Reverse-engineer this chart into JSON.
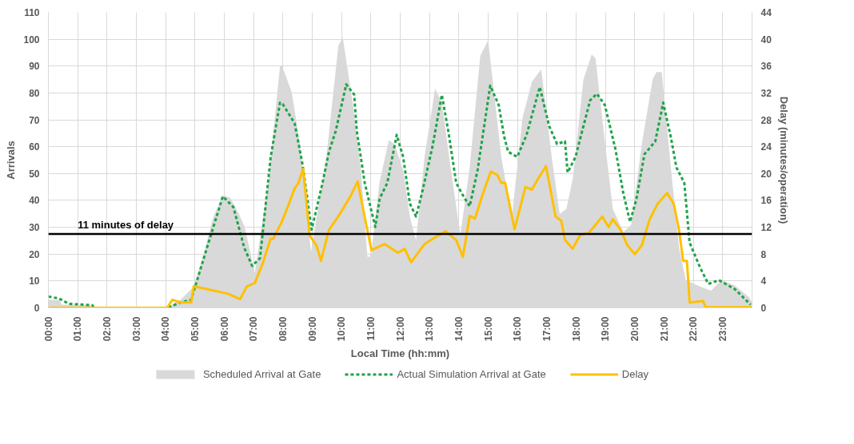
{
  "chart_data": {
    "type": "line",
    "xlabel": "Local Time (hh:mm)",
    "ylabel": "Arrivals",
    "y2label": "Delay (minutes/operation)",
    "xlim": [
      0,
      24
    ],
    "xticks": [
      {
        "value": 0,
        "label": "00:00"
      },
      {
        "value": 1,
        "label": "01:00"
      },
      {
        "value": 2,
        "label": "02:00"
      },
      {
        "value": 3,
        "label": "03:00"
      },
      {
        "value": 4,
        "label": "04:00"
      },
      {
        "value": 5,
        "label": "05:00"
      },
      {
        "value": 6,
        "label": "06:00"
      },
      {
        "value": 7,
        "label": "07:00"
      },
      {
        "value": 8,
        "label": "08:00"
      },
      {
        "value": 9,
        "label": "09:00"
      },
      {
        "value": 10,
        "label": "10:00"
      },
      {
        "value": 11,
        "label": "11:00"
      },
      {
        "value": 12,
        "label": "12:00"
      },
      {
        "value": 13,
        "label": "13:00"
      },
      {
        "value": 14,
        "label": "14:00"
      },
      {
        "value": 15,
        "label": "15:00"
      },
      {
        "value": 16,
        "label": "16:00"
      },
      {
        "value": 17,
        "label": "17:00"
      },
      {
        "value": 18,
        "label": "18:00"
      },
      {
        "value": 19,
        "label": "19:00"
      },
      {
        "value": 20,
        "label": "20:00"
      },
      {
        "value": 21,
        "label": "21:00"
      },
      {
        "value": 22,
        "label": "22:00"
      },
      {
        "value": 23,
        "label": "23:00"
      }
    ],
    "ylim": [
      0,
      110
    ],
    "yticks": [
      0,
      10,
      20,
      30,
      40,
      50,
      60,
      70,
      80,
      90,
      100,
      110
    ],
    "y2lim": [
      0,
      44
    ],
    "y2ticks": [
      0,
      4,
      8,
      12,
      16,
      20,
      24,
      28,
      32,
      36,
      40,
      44
    ],
    "grid": true,
    "legend": "bottom",
    "ref_lines": [
      {
        "axis": "y2",
        "value": 11,
        "label": "11 minutes of delay",
        "color": "#000000"
      }
    ],
    "series": [
      {
        "name": "Scheduled Arrival at Gate",
        "type": "area",
        "color": "#d9d9d9",
        "x": [
          0,
          0.39,
          0.45,
          1.5,
          1.55,
          4.05,
          4.5,
          4.96,
          5.3,
          5.6,
          5.95,
          6.2,
          6.5,
          6.7,
          7.04,
          7.5,
          7.9,
          7.96,
          8.3,
          8.58,
          8.96,
          9.48,
          9.89,
          10.04,
          10.39,
          10.66,
          10.88,
          11.0,
          11.29,
          11.61,
          11.8,
          12.1,
          12.33,
          12.54,
          12.83,
          13.19,
          13.42,
          13.73,
          14.05,
          14.37,
          14.73,
          15.0,
          15.45,
          15.81,
          16.17,
          16.49,
          16.81,
          17.17,
          17.44,
          17.67,
          17.89,
          18.25,
          18.53,
          18.66,
          18.93,
          19.25,
          19.61,
          19.88,
          20.24,
          20.61,
          20.74,
          20.92,
          21.24,
          21.51,
          21.74,
          22.24,
          22.6,
          22.96,
          23.41,
          23.9,
          24
        ],
        "values": [
          3,
          3,
          1.2,
          1,
          0,
          0,
          3,
          7.9,
          20,
          33,
          41.9,
          41,
          35,
          30,
          13,
          46.6,
          90,
          90.4,
          80.3,
          61,
          20.9,
          56,
          97.6,
          100.7,
          75.5,
          51.3,
          19,
          19,
          46.5,
          62.4,
          61,
          51.3,
          34,
          25.1,
          56.2,
          81.7,
          76.4,
          51.3,
          27.2,
          52.3,
          93.8,
          99.6,
          56,
          34,
          70.6,
          84.1,
          88.8,
          56,
          34.9,
          36.9,
          48.4,
          85.1,
          94.3,
          93,
          66.8,
          36.9,
          28.2,
          31,
          61,
          85.1,
          87.8,
          87.8,
          51.3,
          22.4,
          10.3,
          7.9,
          6.4,
          10.3,
          8.3,
          4,
          2
        ]
      },
      {
        "name": "Actual Simulation Arrival at Gate",
        "line_style": "dashed",
        "color": "#1fa34a",
        "x": [
          0,
          0.36,
          0.7,
          1.5,
          1.55,
          4.05,
          4.5,
          4.87,
          5.41,
          5.95,
          6.31,
          6.68,
          6.95,
          7.22,
          7.58,
          7.9,
          7.99,
          8.4,
          8.67,
          8.98,
          9.35,
          9.57,
          9.8,
          10.16,
          10.43,
          10.52,
          10.79,
          11.15,
          11.3,
          11.56,
          11.88,
          12.1,
          12.33,
          12.54,
          12.74,
          13.1,
          13.42,
          13.64,
          13.91,
          14.1,
          14.37,
          14.64,
          15.07,
          15.36,
          15.54,
          15.68,
          15.99,
          16.31,
          16.76,
          17.08,
          17.35,
          17.62,
          17.71,
          17.98,
          18.25,
          18.48,
          18.71,
          18.98,
          19.34,
          19.61,
          19.84,
          20.06,
          20.33,
          20.7,
          20.97,
          21.24,
          21.42,
          21.69,
          21.87,
          22.24,
          22.51,
          22.87,
          23.41,
          23.95
        ],
        "values": [
          4.2,
          3.5,
          1.5,
          1,
          0,
          0,
          2,
          3,
          22.4,
          41.5,
          37.5,
          22.4,
          15.6,
          18.5,
          56,
          76.4,
          75.9,
          68.7,
          53.3,
          29.1,
          46.5,
          58.1,
          65.8,
          83.2,
          79.4,
          65.8,
          46.5,
          30.1,
          40.7,
          46.5,
          64.4,
          56.2,
          38.8,
          34,
          42.6,
          60,
          79.3,
          65.8,
          46.5,
          42.6,
          37.8,
          51.3,
          82.7,
          75.5,
          64,
          58.1,
          56.2,
          64.4,
          82.2,
          67.7,
          61,
          62,
          50.4,
          56.2,
          67.7,
          77.3,
          79.7,
          75.5,
          59.1,
          42.6,
          32,
          40.7,
          57.2,
          62,
          76.4,
          63,
          52.3,
          46.5,
          24.3,
          14.7,
          8.9,
          10.3,
          7,
          1.2
        ]
      },
      {
        "name": "Delay",
        "axis": "y2",
        "color": "#ffc000",
        "x": [
          0,
          4.05,
          4.23,
          4.51,
          4.87,
          4.96,
          5.5,
          6.13,
          6.54,
          6.77,
          7.04,
          7.31,
          7.58,
          7.67,
          7.96,
          8.17,
          8.4,
          8.53,
          8.69,
          8.91,
          9.14,
          9.3,
          9.57,
          9.93,
          10.3,
          10.55,
          10.84,
          11.02,
          11.47,
          11.92,
          12.15,
          12.37,
          12.83,
          13.19,
          13.55,
          13.91,
          14.14,
          14.37,
          14.55,
          14.82,
          15.09,
          15.31,
          15.45,
          15.58,
          15.9,
          16.27,
          16.49,
          16.67,
          16.97,
          17.3,
          17.49,
          17.62,
          17.88,
          18.13,
          18.44,
          18.67,
          18.89,
          19.11,
          19.25,
          19.52,
          19.75,
          20.0,
          20.24,
          20.51,
          20.78,
          21.1,
          21.33,
          21.51,
          21.65,
          21.78,
          21.87,
          22.33,
          22.42,
          24
        ],
        "values": [
          0,
          0,
          1.2,
          0.8,
          0.8,
          3.2,
          2.7,
          2.1,
          1.3,
          3.2,
          3.7,
          6.6,
          10.3,
          10.3,
          12.8,
          15.1,
          17.8,
          18.6,
          20.7,
          10.8,
          9.3,
          7,
          11.6,
          13.9,
          16.6,
          18.8,
          12.4,
          8.6,
          9.5,
          8.2,
          8.8,
          6.8,
          9.5,
          10.5,
          11.4,
          10.1,
          7.6,
          13.7,
          13.3,
          17,
          20.3,
          19.8,
          18.6,
          18.6,
          11.7,
          18,
          17.6,
          19,
          21.1,
          13.6,
          13,
          10.1,
          8.8,
          10.8,
          11.2,
          12.4,
          13.6,
          12,
          13.2,
          11.6,
          9.3,
          8,
          9.3,
          13.2,
          15.5,
          17.1,
          15.5,
          11.6,
          7,
          7,
          0.8,
          1,
          0.1,
          0.1
        ]
      }
    ]
  }
}
